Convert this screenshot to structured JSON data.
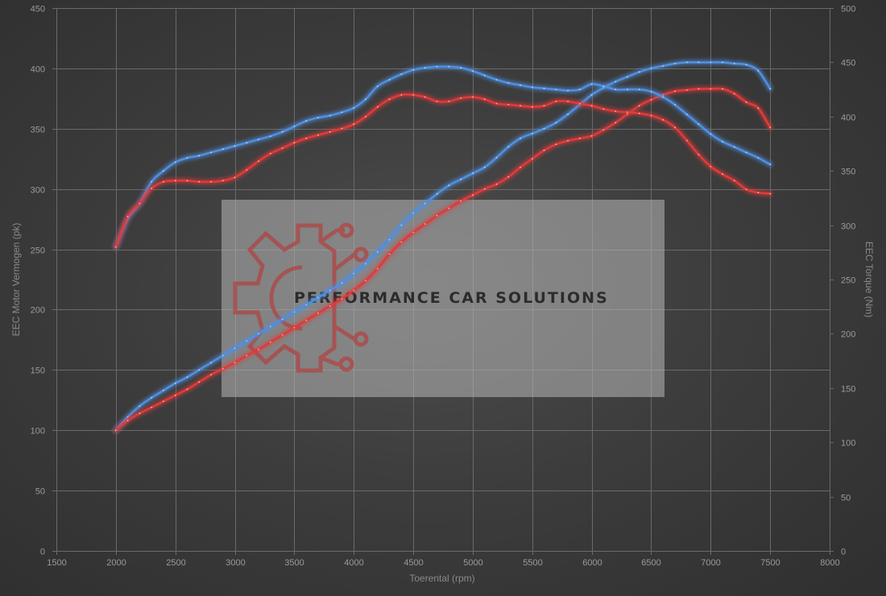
{
  "chart_data": {
    "type": "line",
    "title": "",
    "xlabel": "Toerental (rpm)",
    "ylabel": "EEC Motor Vermogen (pk)",
    "y2label": "EEC Torque (Nm)",
    "xlim": [
      1500,
      8000
    ],
    "ylim": [
      0,
      450
    ],
    "y2lim": [
      0,
      500
    ],
    "xticks": [
      1500,
      2000,
      2500,
      3000,
      3500,
      4000,
      4500,
      5000,
      5500,
      6000,
      6500,
      7000,
      7500,
      8000
    ],
    "yticks": [
      0,
      50,
      100,
      150,
      200,
      250,
      300,
      350,
      400,
      450
    ],
    "y2ticks": [
      0,
      50,
      100,
      150,
      200,
      250,
      300,
      350,
      400,
      450,
      500
    ],
    "grid": true,
    "legend": "none",
    "background_color": "#3d3d3d",
    "series": [
      {
        "id": "power_tuned",
        "axis": "left",
        "color": "#4f8fe0",
        "x": [
          2000,
          2100,
          2200,
          2300,
          2400,
          2500,
          2600,
          2700,
          2800,
          2900,
          3000,
          3100,
          3200,
          3300,
          3400,
          3500,
          3600,
          3700,
          3800,
          3900,
          4000,
          4100,
          4200,
          4300,
          4400,
          4500,
          4600,
          4700,
          4800,
          4900,
          5000,
          5100,
          5200,
          5300,
          5400,
          5500,
          5600,
          5700,
          5800,
          5900,
          6000,
          6100,
          6200,
          6300,
          6400,
          6500,
          6600,
          6700,
          6800,
          6900,
          7000,
          7100,
          7200,
          7300,
          7400,
          7500
        ],
        "y": [
          100,
          111,
          120,
          127,
          133,
          139,
          144,
          150,
          156,
          162,
          168,
          174,
          180,
          186,
          192,
          198,
          204,
          210,
          216,
          222,
          230,
          238,
          248,
          258,
          270,
          280,
          288,
          296,
          303,
          308,
          313,
          318,
          326,
          335,
          342,
          346,
          350,
          355,
          362,
          370,
          378,
          384,
          389,
          393,
          397,
          400,
          402,
          404,
          405,
          405,
          405,
          405,
          404,
          403,
          398,
          383
        ]
      },
      {
        "id": "power_stock",
        "axis": "left",
        "color": "#e03a3a",
        "x": [
          2000,
          2100,
          2200,
          2300,
          2400,
          2500,
          2600,
          2700,
          2800,
          2900,
          3000,
          3100,
          3200,
          3300,
          3400,
          3500,
          3600,
          3700,
          3800,
          3900,
          4000,
          4100,
          4200,
          4300,
          4400,
          4500,
          4600,
          4700,
          4800,
          4900,
          5000,
          5100,
          5200,
          5300,
          5400,
          5500,
          5600,
          5700,
          5800,
          5900,
          6000,
          6100,
          6200,
          6300,
          6400,
          6500,
          6600,
          6700,
          6800,
          6900,
          7000,
          7100,
          7200,
          7300,
          7400,
          7500
        ],
        "y": [
          100,
          108,
          114,
          119,
          124,
          129,
          134,
          140,
          146,
          151,
          156,
          162,
          167,
          173,
          179,
          185,
          191,
          197,
          203,
          209,
          216,
          224,
          234,
          246,
          256,
          264,
          271,
          278,
          284,
          290,
          295,
          300,
          304,
          310,
          318,
          325,
          332,
          337,
          340,
          342,
          344,
          349,
          355,
          362,
          369,
          374,
          378,
          381,
          382,
          383,
          383,
          383,
          379,
          372,
          367,
          351
        ]
      },
      {
        "id": "torque_tuned",
        "axis": "right",
        "color": "#4f8fe0",
        "x": [
          2000,
          2100,
          2200,
          2300,
          2400,
          2500,
          2600,
          2700,
          2800,
          2900,
          3000,
          3100,
          3200,
          3300,
          3400,
          3500,
          3600,
          3700,
          3800,
          3900,
          4000,
          4100,
          4200,
          4300,
          4400,
          4500,
          4600,
          4700,
          4800,
          4900,
          5000,
          5100,
          5200,
          5300,
          5400,
          5500,
          5600,
          5700,
          5800,
          5900,
          6000,
          6100,
          6200,
          6300,
          6400,
          6500,
          6600,
          6700,
          6800,
          6900,
          7000,
          7100,
          7200,
          7300,
          7400,
          7500
        ],
        "y": [
          280,
          306,
          320,
          340,
          350,
          358,
          362,
          364,
          367,
          370,
          373,
          376,
          379,
          382,
          386,
          391,
          396,
          399,
          401,
          404,
          408,
          416,
          428,
          434,
          439,
          443,
          445,
          446,
          446,
          445,
          442,
          438,
          434,
          431,
          429,
          427,
          426,
          425,
          424,
          425,
          430,
          428,
          425,
          425,
          425,
          423,
          418,
          411,
          402,
          393,
          384,
          377,
          372,
          367,
          362,
          356
        ]
      },
      {
        "id": "torque_stock",
        "axis": "right",
        "color": "#e03a3a",
        "x": [
          2000,
          2100,
          2200,
          2300,
          2400,
          2500,
          2600,
          2700,
          2800,
          2900,
          3000,
          3100,
          3200,
          3300,
          3400,
          3500,
          3600,
          3700,
          3800,
          3900,
          4000,
          4100,
          4200,
          4300,
          4400,
          4500,
          4600,
          4700,
          4800,
          4900,
          5000,
          5100,
          5200,
          5300,
          5400,
          5500,
          5600,
          5700,
          5800,
          5900,
          6000,
          6100,
          6200,
          6300,
          6400,
          6500,
          6600,
          6700,
          6800,
          6900,
          7000,
          7100,
          7200,
          7300,
          7400,
          7500
        ],
        "y": [
          280,
          308,
          320,
          334,
          340,
          341,
          341,
          340,
          340,
          341,
          344,
          351,
          359,
          366,
          371,
          376,
          380,
          383,
          386,
          389,
          393,
          400,
          409,
          416,
          420,
          420,
          418,
          414,
          414,
          417,
          418,
          416,
          412,
          411,
          410,
          409,
          410,
          414,
          414,
          412,
          410,
          407,
          405,
          404,
          403,
          401,
          397,
          390,
          378,
          365,
          354,
          347,
          341,
          333,
          330,
          329
        ]
      }
    ]
  },
  "watermark": {
    "text": "PERFORMANCE CAR SOLUTIONS",
    "icon": "gear-circuit-icon",
    "logo_color": "#b04444"
  }
}
